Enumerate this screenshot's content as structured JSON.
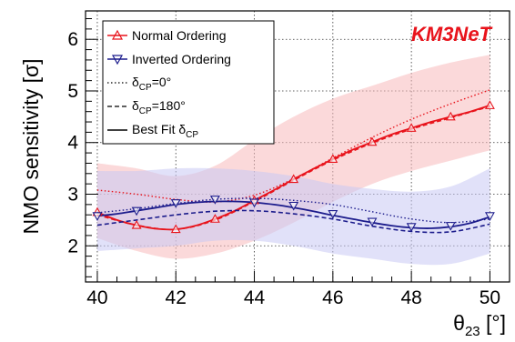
{
  "chart_data": {
    "type": "line",
    "title": "",
    "xlabel_symbol": "θ",
    "xlabel_sub": "23",
    "xlabel_unit": " [°]",
    "ylabel": "NMO sensitivity [σ]",
    "xlim": [
      39.7,
      50.5
    ],
    "ylim": [
      1.3,
      6.55
    ],
    "x_ticks": [
      40,
      42,
      44,
      46,
      48,
      50
    ],
    "y_ticks": [
      2,
      3,
      4,
      5,
      6
    ],
    "grid": true,
    "legend_position": "top-left",
    "brand": "KM3NeT",
    "brand_color": "#e8131b",
    "legend": {
      "normal": "Normal Ordering",
      "inverted": "Inverted Ordering",
      "delta": "δ",
      "cp": "CP",
      "eq0": "=0°",
      "eq180": "=180°",
      "bestfit": "Best Fit δ"
    },
    "series": [
      {
        "name": "Normal Ordering",
        "color": "#e8131b",
        "band_color": "#f7b9bb",
        "best_fit": {
          "x": [
            40,
            40.5,
            41,
            41.5,
            42,
            42.5,
            43,
            43.5,
            44,
            44.5,
            45,
            45.5,
            46,
            46.5,
            47,
            47.5,
            48,
            48.5,
            49,
            49.5,
            50
          ],
          "y": [
            2.65,
            2.5,
            2.4,
            2.33,
            2.32,
            2.39,
            2.52,
            2.68,
            2.88,
            3.08,
            3.29,
            3.49,
            3.68,
            3.86,
            4.01,
            4.16,
            4.28,
            4.4,
            4.5,
            4.6,
            4.72
          ]
        },
        "markers": {
          "x": [
            40,
            41,
            42,
            43,
            44,
            45,
            46,
            47,
            48,
            49,
            50
          ],
          "y": [
            2.65,
            2.4,
            2.32,
            2.52,
            2.88,
            3.29,
            3.68,
            4.01,
            4.28,
            4.5,
            4.72
          ]
        },
        "delta_cp_0": {
          "x": [
            40,
            41,
            42,
            43,
            44,
            45,
            46,
            47,
            48,
            49,
            50
          ],
          "y": [
            3.08,
            3.0,
            2.9,
            2.85,
            2.98,
            3.3,
            3.7,
            4.1,
            4.45,
            4.75,
            5.02
          ]
        },
        "delta_cp_180": {
          "x": [
            40,
            41,
            42,
            43,
            44,
            45,
            46,
            47,
            48,
            49,
            50
          ],
          "y": [
            2.6,
            2.4,
            2.32,
            2.5,
            2.86,
            3.27,
            3.66,
            3.99,
            4.26,
            4.48,
            4.7
          ]
        },
        "band_upper": {
          "x": [
            40,
            41,
            42,
            43,
            44,
            45,
            46,
            47,
            48,
            49,
            50
          ],
          "y": [
            3.6,
            3.5,
            3.35,
            3.55,
            4.05,
            4.5,
            4.85,
            5.1,
            5.35,
            5.55,
            5.7
          ]
        },
        "band_lower": {
          "x": [
            40,
            41,
            42,
            43,
            44,
            45,
            46,
            47,
            48,
            49,
            50
          ],
          "y": [
            2.15,
            1.9,
            1.75,
            1.85,
            2.1,
            2.45,
            2.85,
            3.2,
            3.45,
            3.65,
            3.85
          ]
        }
      },
      {
        "name": "Inverted Ordering",
        "color": "#1c1c8c",
        "band_color": "#c8c8f4",
        "best_fit": {
          "x": [
            40,
            40.5,
            41,
            41.5,
            42,
            42.5,
            43,
            43.5,
            44,
            44.5,
            45,
            45.5,
            46,
            46.5,
            47,
            47.5,
            48,
            48.5,
            49,
            49.5,
            50
          ],
          "y": [
            2.58,
            2.62,
            2.68,
            2.74,
            2.8,
            2.84,
            2.86,
            2.86,
            2.84,
            2.8,
            2.74,
            2.67,
            2.59,
            2.52,
            2.45,
            2.39,
            2.35,
            2.34,
            2.37,
            2.44,
            2.56
          ]
        },
        "markers": {
          "x": [
            40,
            41,
            42,
            43,
            44,
            45,
            46,
            47,
            48,
            49,
            50
          ],
          "y": [
            2.58,
            2.68,
            2.83,
            2.9,
            2.84,
            2.78,
            2.62,
            2.47,
            2.37,
            2.39,
            2.58
          ]
        },
        "delta_cp_0": {
          "x": [
            40,
            41,
            42,
            43,
            44,
            45,
            46,
            47,
            48,
            49,
            50
          ],
          "y": [
            2.64,
            2.72,
            2.82,
            2.9,
            2.92,
            2.88,
            2.8,
            2.66,
            2.52,
            2.45,
            2.52
          ]
        },
        "delta_cp_180": {
          "x": [
            40,
            41,
            42,
            43,
            44,
            45,
            46,
            47,
            48,
            49,
            50
          ],
          "y": [
            2.4,
            2.5,
            2.6,
            2.67,
            2.68,
            2.62,
            2.52,
            2.38,
            2.28,
            2.27,
            2.42
          ]
        },
        "band_upper": {
          "x": [
            40,
            41,
            42,
            43,
            44,
            45,
            46,
            47,
            48,
            49,
            50
          ],
          "y": [
            3.45,
            3.45,
            3.5,
            3.5,
            3.45,
            3.35,
            3.2,
            3.1,
            3.05,
            3.15,
            3.5
          ]
        },
        "band_lower": {
          "x": [
            40,
            41,
            42,
            43,
            44,
            45,
            46,
            47,
            48,
            49,
            50
          ],
          "y": [
            1.9,
            1.95,
            2.0,
            2.1,
            2.1,
            2.0,
            1.85,
            1.75,
            1.65,
            1.65,
            1.85
          ]
        }
      }
    ]
  }
}
